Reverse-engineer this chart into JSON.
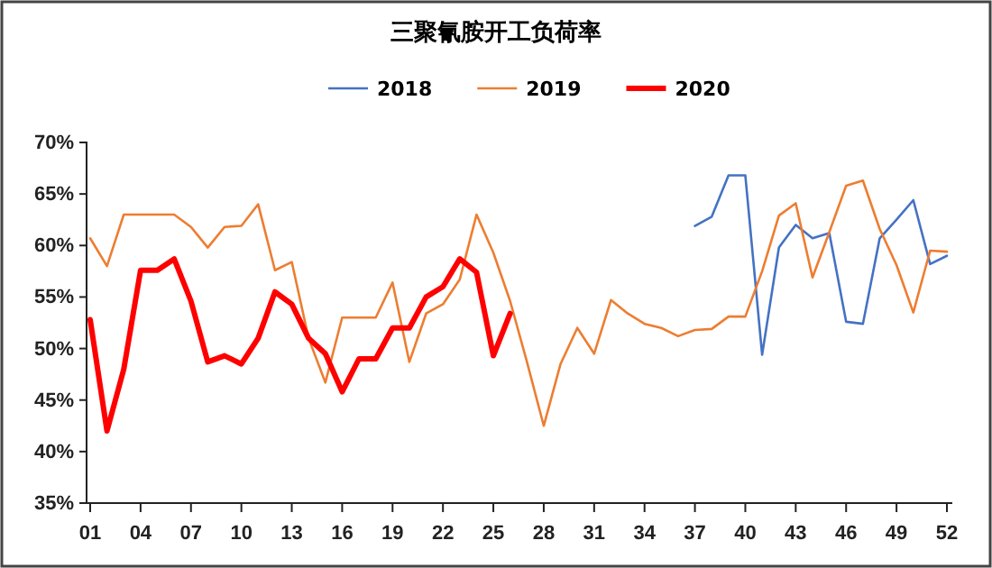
{
  "chart_data": {
    "type": "line",
    "title": "三聚氰胺开工负荷率",
    "categories": [
      "01",
      null,
      null,
      "04",
      null,
      null,
      "07",
      null,
      null,
      "10",
      null,
      null,
      "13",
      null,
      null,
      "16",
      null,
      null,
      "19",
      null,
      null,
      "22",
      null,
      null,
      "25",
      null,
      null,
      "28",
      null,
      null,
      "31",
      null,
      null,
      "34",
      null,
      null,
      "37",
      null,
      null,
      "40",
      null,
      null,
      "43",
      null,
      null,
      "46",
      null,
      null,
      "49",
      null,
      null,
      "52"
    ],
    "ylim": [
      35,
      70
    ],
    "yticks": [
      {
        "value": 35,
        "label": "35%"
      },
      {
        "value": 40,
        "label": "40%"
      },
      {
        "value": 45,
        "label": "45%"
      },
      {
        "value": 50,
        "label": "50%"
      },
      {
        "value": 55,
        "label": "55%"
      },
      {
        "value": 60,
        "label": "60%"
      },
      {
        "value": 65,
        "label": "65%"
      },
      {
        "value": 70,
        "label": "70%"
      }
    ],
    "grid": false,
    "legend": "top",
    "marker": "none",
    "series": [
      {
        "name": "2018",
        "color": "#4472c4",
        "values": [
          null,
          null,
          null,
          null,
          null,
          null,
          null,
          null,
          null,
          null,
          null,
          null,
          null,
          null,
          null,
          null,
          null,
          null,
          null,
          null,
          null,
          null,
          null,
          null,
          null,
          null,
          null,
          null,
          null,
          null,
          null,
          null,
          null,
          null,
          null,
          null,
          61.9,
          62.8,
          66.8,
          66.8,
          49.4,
          59.8,
          62,
          60.7,
          61.2,
          52.6,
          52.4,
          60.7,
          62.5,
          64.4,
          58.2,
          59
        ]
      },
      {
        "name": "2019",
        "color": "#ed7d31",
        "values": [
          60.7,
          58,
          63,
          63,
          63,
          63,
          61.8,
          59.8,
          61.8,
          61.9,
          64,
          57.6,
          58.4,
          51,
          46.7,
          53,
          53,
          53,
          56.4,
          48.7,
          53.4,
          54.3,
          56.7,
          63,
          59.3,
          54.6,
          48.7,
          42.5,
          48.5,
          52,
          49.5,
          54.7,
          53.4,
          52.4,
          52,
          51.2,
          51.8,
          51.9,
          53.1,
          53.1,
          57.5,
          62.9,
          64.1,
          56.9,
          61.3,
          65.8,
          66.3,
          61.6,
          58.1,
          53.5,
          59.5,
          59.4
        ]
      },
      {
        "name": "2020",
        "color": "#ff0000",
        "values": [
          52.8,
          42,
          48,
          57.6,
          57.6,
          58.7,
          54.6,
          48.7,
          49.3,
          48.5,
          51,
          55.5,
          54.3,
          51,
          49.5,
          45.8,
          49,
          49,
          52,
          52,
          55,
          56,
          58.7,
          57.4,
          49.3,
          53.4,
          null,
          null,
          null,
          null,
          null,
          null,
          null,
          null,
          null,
          null,
          null,
          null,
          null,
          null,
          null,
          null,
          null,
          null,
          null,
          null,
          null,
          null,
          null,
          null,
          null,
          null
        ]
      }
    ]
  }
}
